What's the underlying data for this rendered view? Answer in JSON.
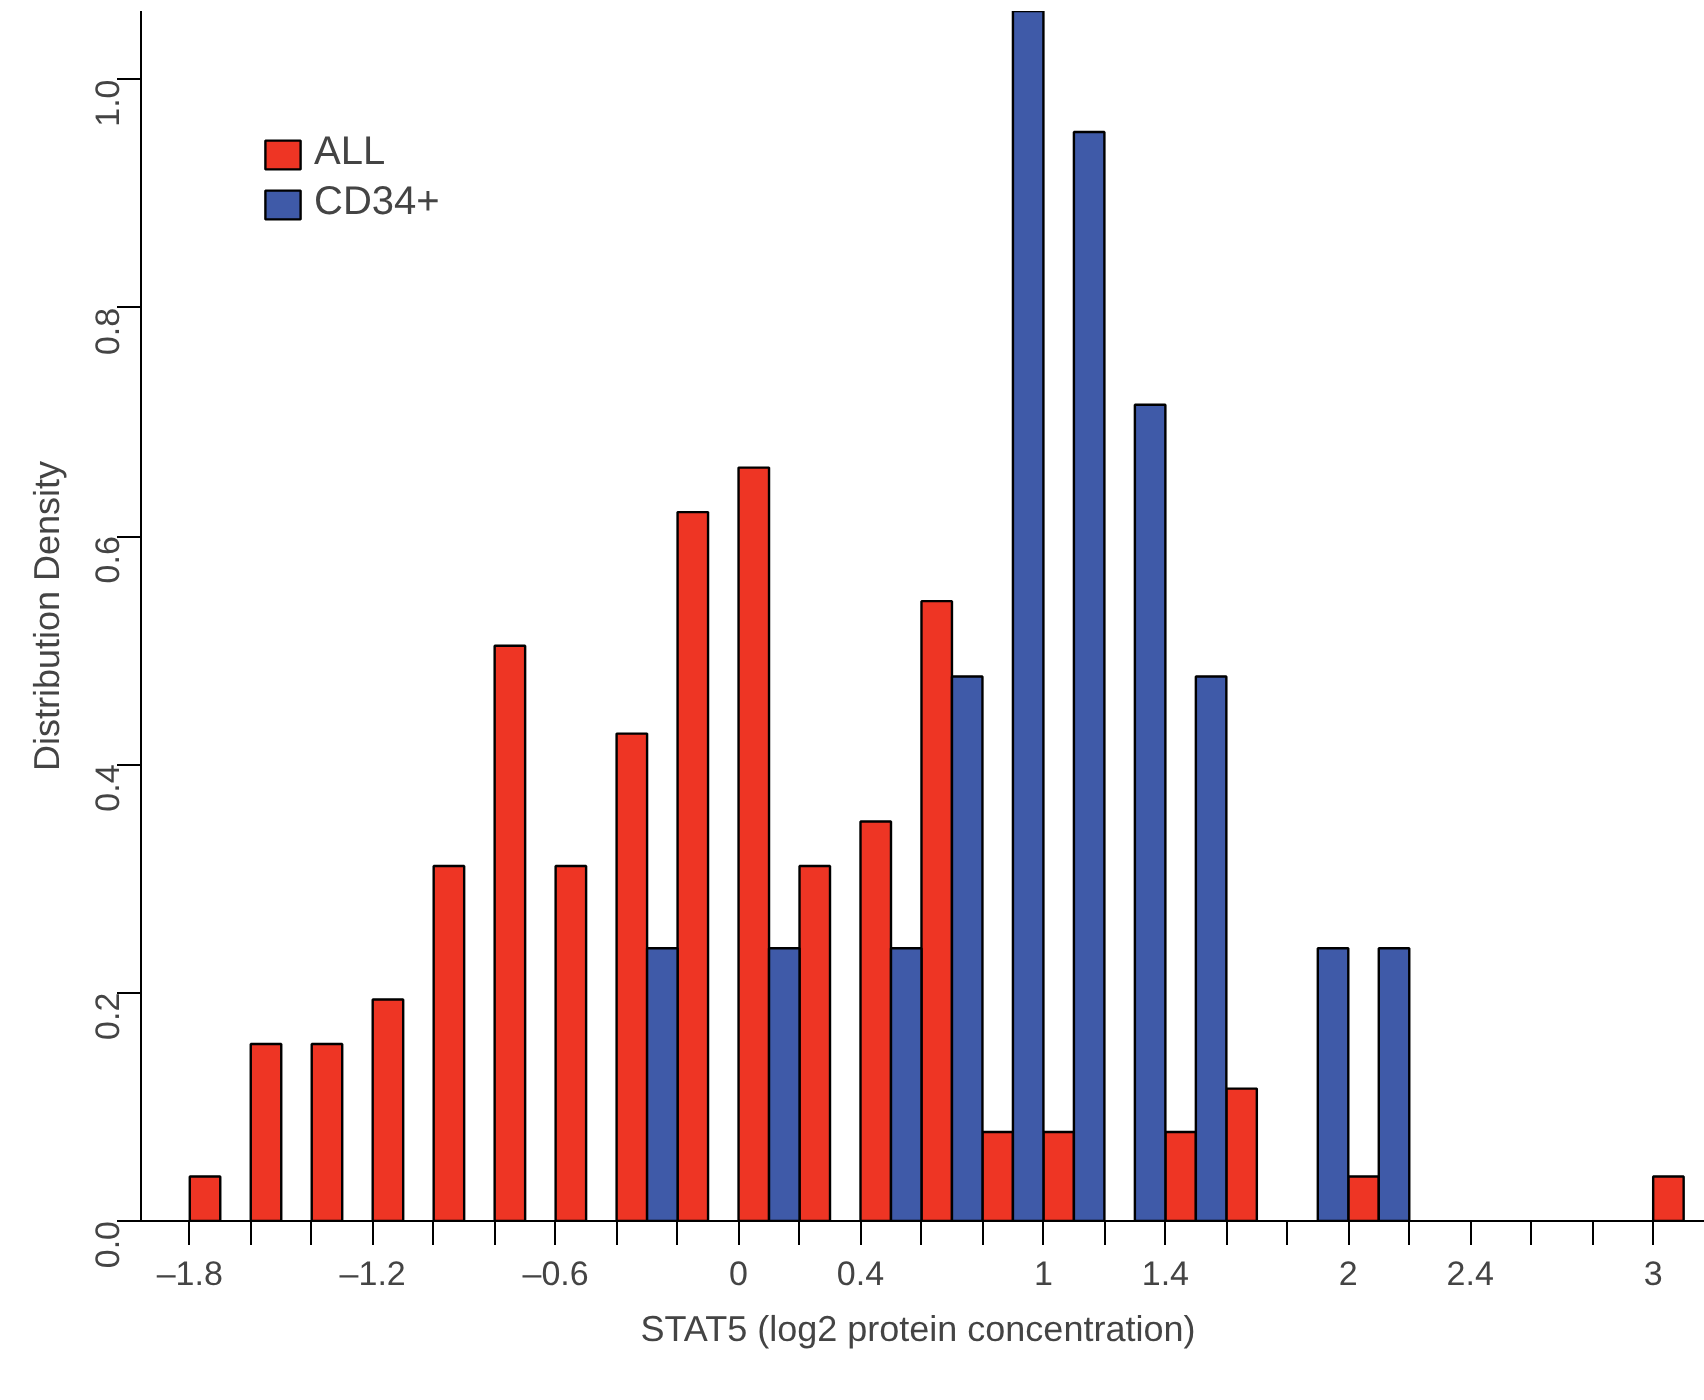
{
  "chart_data": {
    "type": "histogram",
    "xlabel": "STAT5  (log2 protein concentration)",
    "ylabel": "Distribution Density",
    "bins": [
      -1.8,
      -1.6,
      -1.4,
      -1.2,
      -1.0,
      -0.8,
      -0.6,
      -0.4,
      -0.2,
      0,
      0.2,
      0.4,
      0.6,
      0.8,
      1.0,
      1.2,
      1.4,
      1.6,
      1.8,
      2.0,
      2.2,
      2.4,
      2.6,
      2.8,
      3.0,
      3.2
    ],
    "series": [
      {
        "name": "ALL",
        "color": "#ee3524",
        "values": [
          0.039,
          0.155,
          0.155,
          0.194,
          0.311,
          0.504,
          0.311,
          0.427,
          0.621,
          0.66,
          0.311,
          0.35,
          0.543,
          0.078,
          0.078,
          0,
          0.078,
          0.116,
          0,
          0.039,
          0,
          0,
          0,
          0,
          0.039
        ]
      },
      {
        "name": "CD34+",
        "color": "#3f5aa8",
        "values": [
          0,
          0,
          0,
          0,
          0,
          0,
          0,
          0.239,
          0,
          0.239,
          0,
          0.239,
          0.477,
          1.06,
          0.954,
          0.715,
          0.477,
          0,
          0.239,
          0.239,
          0,
          0,
          0,
          0,
          0
        ]
      }
    ],
    "xlim": [
      -1.96,
      3.17
    ],
    "ylim": [
      0,
      1.06
    ],
    "xticks": [
      {
        "value": -1.8,
        "label": "–1.8"
      },
      {
        "value": -1.6,
        "label": null
      },
      {
        "value": -1.4,
        "label": null
      },
      {
        "value": -1.2,
        "label": "–1.2"
      },
      {
        "value": -1.0,
        "label": null
      },
      {
        "value": -0.8,
        "label": null
      },
      {
        "value": -0.6,
        "label": "–0.6"
      },
      {
        "value": -0.4,
        "label": null
      },
      {
        "value": -0.2,
        "label": null
      },
      0,
      {
        "value": 0.2,
        "label": null
      },
      0.4,
      {
        "value": 0.6,
        "label": null
      },
      {
        "value": 0.8,
        "label": null
      },
      1,
      {
        "value": 1.2,
        "label": null
      },
      1.4,
      {
        "value": 1.6,
        "label": null
      },
      {
        "value": 1.8,
        "label": null
      },
      2,
      {
        "value": 2.2,
        "label": null
      },
      2.4,
      {
        "value": 2.6,
        "label": null
      },
      {
        "value": 2.8,
        "label": null
      },
      3
    ],
    "yticks": [
      {
        "value": 0,
        "label": "0.0"
      },
      {
        "value": 0.2,
        "label": "0.2"
      },
      {
        "value": 0.4,
        "label": "0.4"
      },
      {
        "value": 0.6,
        "label": "0.6"
      },
      {
        "value": 0.8,
        "label": "0.8"
      },
      {
        "value": 1.0,
        "label": "1.0"
      }
    ],
    "grid": false,
    "legend": "top left"
  }
}
